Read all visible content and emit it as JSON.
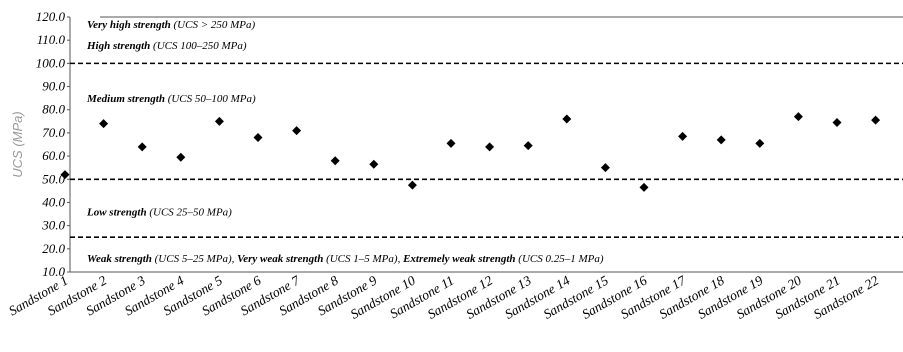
{
  "chart_data": {
    "type": "scatter",
    "ylabel": "UCS (MPa)",
    "ylim": [
      10,
      120
    ],
    "yticks": [
      "10.0",
      "20.0",
      "30.0",
      "40.0",
      "50.0",
      "60.0",
      "70.0",
      "80.0",
      "90.0",
      "100.0",
      "110.0",
      "120.0"
    ],
    "categories": [
      "Sandstone 1",
      "Sandstone 2",
      "Sandstone 3",
      "Sandstone 4",
      "Sandstone 5",
      "Sandstone 6",
      "Sandstone 7",
      "Sandstone 8",
      "Sandstone 9",
      "Sandstone 10",
      "Sandstone 11",
      "Sandstone 12",
      "Sandstone 13",
      "Sandstone 14",
      "Sandstone 15",
      "Sandstone 16",
      "Sandstone 17",
      "Sandstone 18",
      "Sandstone 19",
      "Sandstone 20",
      "Sandstone 21",
      "Sandstone 22"
    ],
    "values": [
      52,
      74,
      64,
      59.5,
      75,
      68,
      71,
      58,
      56.5,
      47.5,
      65.5,
      64,
      64.5,
      76,
      55,
      46.5,
      68.5,
      67,
      65.5,
      77,
      74.5,
      75.5
    ],
    "marker": "diamond",
    "marker_color": "#000000",
    "thresholds": [
      {
        "value": 100,
        "style": "dashed"
      },
      {
        "value": 50,
        "style": "dashed"
      },
      {
        "value": 25,
        "style": "dashed"
      }
    ],
    "zones": [
      {
        "bold": "Very high strength",
        "rest": " (UCS > 250 MPa)",
        "at": 117
      },
      {
        "bold": "High strength",
        "rest": " (UCS 100–250 MPa)",
        "at": 108
      },
      {
        "bold": "Medium strength",
        "rest": " (UCS 50–100 MPa)",
        "at": 85
      },
      {
        "bold": "Low strength",
        "rest": " (UCS 25–50 MPa)",
        "at": 36
      },
      {
        "segments": [
          {
            "text": "Weak strength",
            "bold": true
          },
          {
            "text": " (UCS 5–25 MPa), ",
            "bold": false
          },
          {
            "text": "Very weak strength",
            "bold": true
          },
          {
            "text": " (UCS 1–5 MPa), ",
            "bold": false
          },
          {
            "text": "Extremely weak strength",
            "bold": true
          },
          {
            "text": " (UCS 0.25–1 MPa)",
            "bold": false
          }
        ],
        "at": 16
      }
    ],
    "grid": false,
    "legend": "none"
  }
}
